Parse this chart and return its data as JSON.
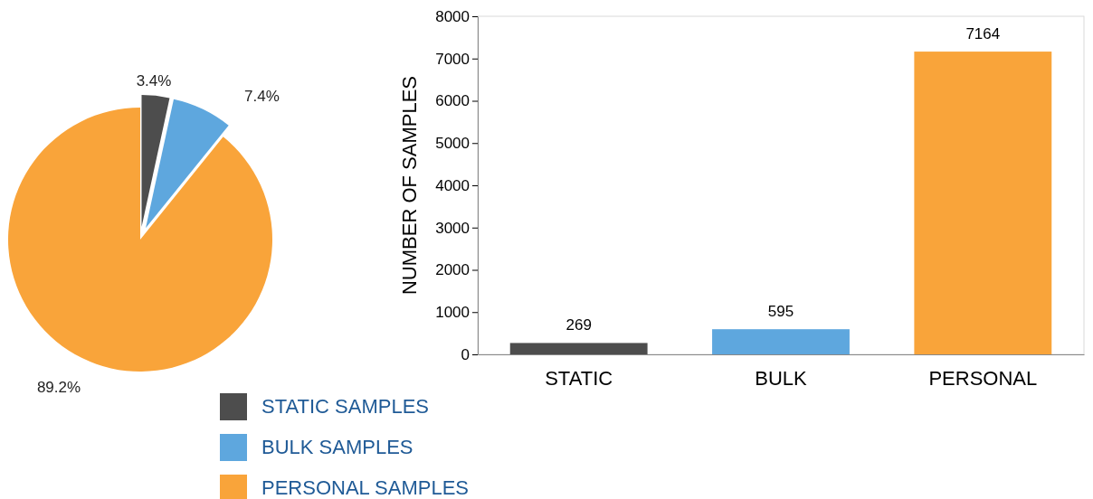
{
  "chart_data": [
    {
      "type": "pie",
      "categories": [
        "STATIC SAMPLES",
        "BULK SAMPLES",
        "PERSONAL SAMPLES"
      ],
      "values": [
        3.4,
        7.4,
        89.2
      ],
      "colors": [
        "#4d4d4d",
        "#5ea7de",
        "#f9a43a"
      ],
      "value_labels": [
        "3.4%",
        "7.4%",
        "89.2%"
      ],
      "legend": "bottom"
    },
    {
      "type": "bar",
      "categories": [
        "STATIC",
        "BULK",
        "PERSONAL"
      ],
      "values": [
        269,
        595,
        7164
      ],
      "colors": [
        "#4d4d4d",
        "#5ea7de",
        "#f9a43a"
      ],
      "ylabel": "NUMBER OF SAMPLES",
      "ylim": [
        0,
        8000
      ],
      "yticks": [
        0,
        1000,
        2000,
        3000,
        4000,
        5000,
        6000,
        7000,
        8000
      ],
      "data_labels": true,
      "grid": false
    }
  ]
}
